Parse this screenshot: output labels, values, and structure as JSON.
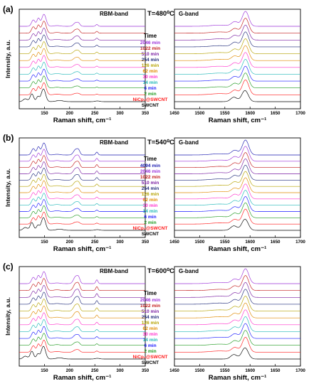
{
  "figure": {
    "x_axis_label": "Raman shift, cm⁻¹",
    "y_axis_label": "Intensity, a.u.",
    "left_band_label": "RBM-band",
    "right_band_label": "G-band",
    "legend_header": "Time"
  },
  "chart_data": [
    {
      "type": "line",
      "panel": "(a)",
      "temperature_label": "T=480⁰C",
      "rbm_xlim": [
        100,
        350
      ],
      "rbm_xticks": [
        150,
        200,
        250,
        300,
        350
      ],
      "g_xlim": [
        1450,
        1700
      ],
      "g_xticks": [
        1450,
        1500,
        1550,
        1600,
        1650,
        1700
      ],
      "series": [
        {
          "name": "2046 min",
          "color": "#9b30d9"
        },
        {
          "name": "1022 min",
          "color": "#c21a1a"
        },
        {
          "name": "510 min",
          "color": "#7a1fa2"
        },
        {
          "name": "254 min",
          "color": "#1f2a7a"
        },
        {
          "name": "126 min",
          "color": "#b5a200"
        },
        {
          "name": "62 min",
          "color": "#e08a00"
        },
        {
          "name": "30 min",
          "color": "#ff33cc"
        },
        {
          "name": "14 min",
          "color": "#20b8b8"
        },
        {
          "name": "6 min",
          "color": "#1a1aff"
        },
        {
          "name": "2 min",
          "color": "#1f9a1f"
        },
        {
          "name": "NiCp₂@SWCNT",
          "color": "#ff1a1a"
        },
        {
          "name": "SWCNT",
          "color": "#000000"
        }
      ]
    },
    {
      "type": "line",
      "panel": "(b)",
      "temperature_label": "T=540⁰C",
      "rbm_xlim": [
        100,
        350
      ],
      "rbm_xticks": [
        150,
        200,
        250,
        300,
        350
      ],
      "g_xlim": [
        1450,
        1700
      ],
      "g_xticks": [
        1450,
        1500,
        1550,
        1600,
        1650,
        1700
      ],
      "series": [
        {
          "name": "4094 min",
          "color": "#1a1ab0"
        },
        {
          "name": "2046 min",
          "color": "#9b30d9"
        },
        {
          "name": "1022 min",
          "color": "#c21a1a"
        },
        {
          "name": "510 min",
          "color": "#7a1fa2"
        },
        {
          "name": "254 min",
          "color": "#1f2a7a"
        },
        {
          "name": "126 min",
          "color": "#b5a200"
        },
        {
          "name": "62 min",
          "color": "#e08a00"
        },
        {
          "name": "30 min",
          "color": "#ff33cc"
        },
        {
          "name": "14 min",
          "color": "#20b8b8"
        },
        {
          "name": "6 min",
          "color": "#1a1aff"
        },
        {
          "name": "2 min",
          "color": "#1f9a1f"
        },
        {
          "name": "NiCp₂@SWCNT",
          "color": "#ff1a1a"
        },
        {
          "name": "SWCNT",
          "color": "#000000"
        }
      ]
    },
    {
      "type": "line",
      "panel": "(c)",
      "temperature_label": "T=600⁰C",
      "rbm_xlim": [
        100,
        350
      ],
      "rbm_xticks": [
        150,
        200,
        250,
        300,
        350
      ],
      "g_xlim": [
        1450,
        1700
      ],
      "g_xticks": [
        1450,
        1500,
        1550,
        1600,
        1650,
        1700
      ],
      "series": [
        {
          "name": "2046 min",
          "color": "#9b30d9"
        },
        {
          "name": "1022 min",
          "color": "#c21a1a"
        },
        {
          "name": "510 min",
          "color": "#7a1fa2"
        },
        {
          "name": "254 min",
          "color": "#1f2a7a"
        },
        {
          "name": "126 min",
          "color": "#b5a200"
        },
        {
          "name": "62 min",
          "color": "#e08a00"
        },
        {
          "name": "30 min",
          "color": "#ff33cc"
        },
        {
          "name": "14 min",
          "color": "#20b8b8"
        },
        {
          "name": "6 min",
          "color": "#1a1aff"
        },
        {
          "name": "2 min",
          "color": "#1f9a1f"
        },
        {
          "name": "NiCp₂@SWCNT",
          "color": "#ff1a1a"
        },
        {
          "name": "SWCNT",
          "color": "#000000"
        }
      ]
    }
  ]
}
